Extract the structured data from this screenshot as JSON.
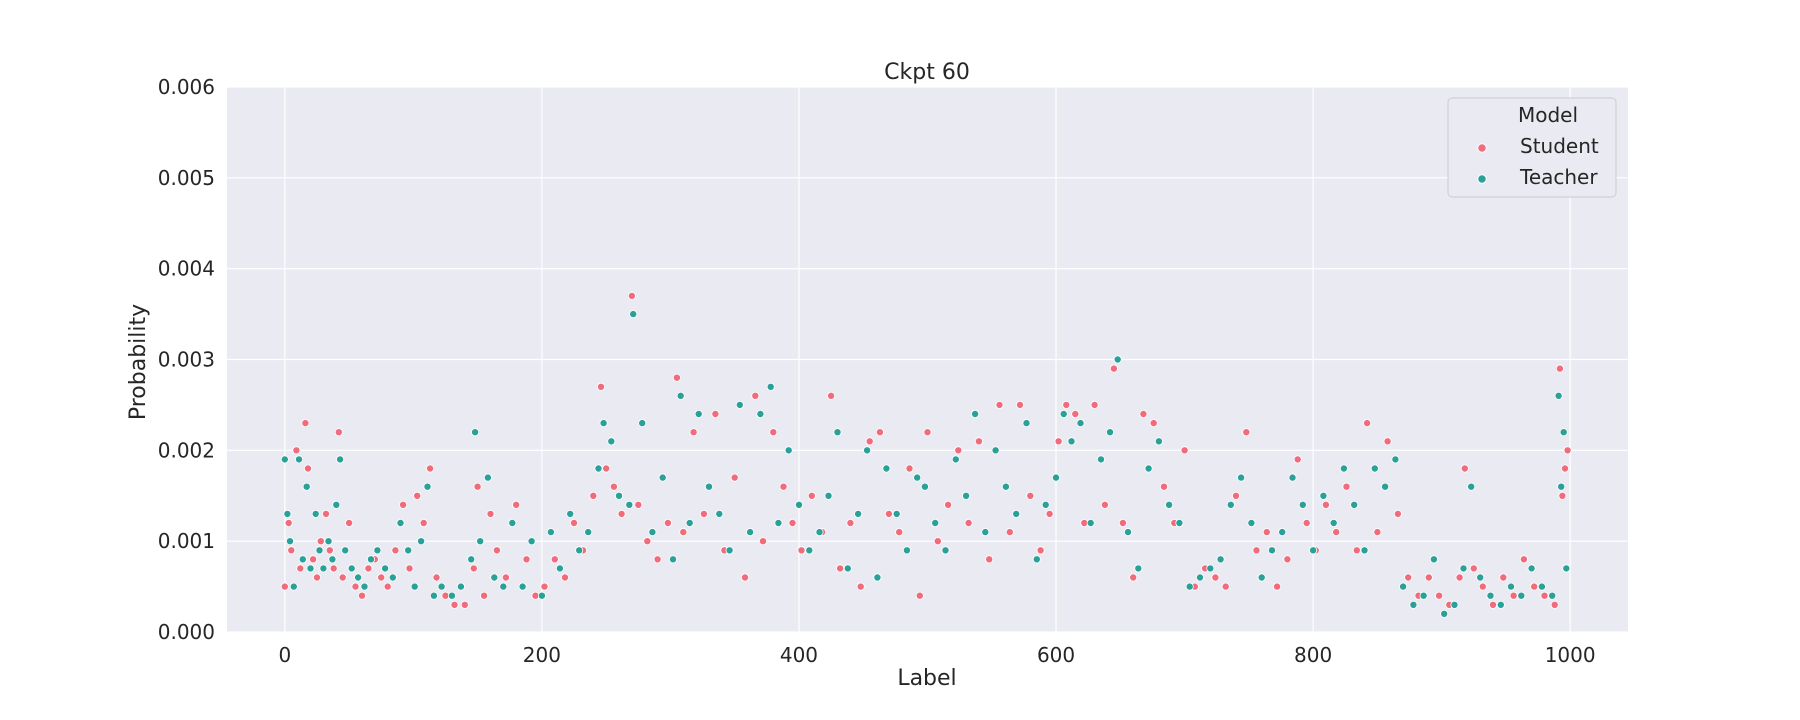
{
  "chart_data": {
    "type": "scatter",
    "title": "Ckpt 60",
    "xlabel": "Label",
    "ylabel": "Probability",
    "xlim": [
      -45,
      1045
    ],
    "ylim": [
      0,
      0.006
    ],
    "xticks": [
      0,
      200,
      400,
      600,
      800,
      1000
    ],
    "xtick_labels": [
      "0",
      "200",
      "400",
      "600",
      "800",
      "1000"
    ],
    "yticks": [
      0,
      0.001,
      0.002,
      0.003,
      0.004,
      0.005,
      0.006
    ],
    "ytick_labels": [
      "0.000",
      "0.001",
      "0.002",
      "0.003",
      "0.004",
      "0.005",
      "0.006"
    ],
    "grid": true,
    "legend": {
      "title": "Model",
      "placement": "top-right"
    },
    "series": [
      {
        "name": "Student",
        "color": "#f06c7c",
        "x": [
          0,
          3,
          5,
          9,
          12,
          16,
          18,
          22,
          25,
          28,
          32,
          35,
          38,
          42,
          45,
          50,
          55,
          60,
          65,
          70,
          75,
          80,
          86,
          92,
          97,
          103,
          108,
          113,
          118,
          125,
          132,
          140,
          147,
          150,
          155,
          160,
          165,
          172,
          180,
          188,
          195,
          202,
          210,
          218,
          225,
          232,
          240,
          246,
          250,
          256,
          262,
          270,
          275,
          282,
          290,
          298,
          305,
          310,
          318,
          326,
          335,
          342,
          350,
          358,
          366,
          372,
          380,
          388,
          395,
          402,
          410,
          418,
          425,
          432,
          440,
          448,
          455,
          463,
          470,
          478,
          486,
          494,
          500,
          508,
          516,
          524,
          532,
          540,
          548,
          556,
          564,
          572,
          580,
          588,
          595,
          602,
          608,
          615,
          622,
          630,
          638,
          645,
          652,
          660,
          668,
          676,
          684,
          692,
          700,
          708,
          716,
          724,
          732,
          740,
          748,
          756,
          764,
          772,
          780,
          788,
          795,
          802,
          810,
          818,
          826,
          834,
          842,
          850,
          858,
          866,
          874,
          882,
          890,
          898,
          906,
          914,
          918,
          925,
          932,
          940,
          948,
          956,
          964,
          972,
          980,
          988,
          992,
          994,
          996,
          998
        ],
        "y": [
          0.0005,
          0.0012,
          0.0009,
          0.002,
          0.0007,
          0.0023,
          0.0018,
          0.0008,
          0.0006,
          0.001,
          0.0013,
          0.0009,
          0.0007,
          0.0022,
          0.0006,
          0.0012,
          0.0005,
          0.0004,
          0.0007,
          0.0008,
          0.0006,
          0.0005,
          0.0009,
          0.0014,
          0.0007,
          0.0015,
          0.0012,
          0.0018,
          0.0006,
          0.0004,
          0.0003,
          0.0003,
          0.0007,
          0.0016,
          0.0004,
          0.0013,
          0.0009,
          0.0006,
          0.0014,
          0.0008,
          0.0004,
          0.0005,
          0.0008,
          0.0006,
          0.0012,
          0.0009,
          0.0015,
          0.0027,
          0.0018,
          0.0016,
          0.0013,
          0.0037,
          0.0014,
          0.001,
          0.0008,
          0.0012,
          0.0028,
          0.0011,
          0.0022,
          0.0013,
          0.0024,
          0.0009,
          0.0017,
          0.0006,
          0.0026,
          0.001,
          0.0022,
          0.0016,
          0.0012,
          0.0009,
          0.0015,
          0.0011,
          0.0026,
          0.0007,
          0.0012,
          0.0005,
          0.0021,
          0.0022,
          0.0013,
          0.0011,
          0.0018,
          0.0004,
          0.0022,
          0.001,
          0.0014,
          0.002,
          0.0012,
          0.0021,
          0.0008,
          0.0025,
          0.0011,
          0.0025,
          0.0015,
          0.0009,
          0.0013,
          0.0021,
          0.0025,
          0.0024,
          0.0012,
          0.0025,
          0.0014,
          0.0029,
          0.0012,
          0.0006,
          0.0024,
          0.0023,
          0.0016,
          0.0012,
          0.002,
          0.0005,
          0.0007,
          0.0006,
          0.0005,
          0.0015,
          0.0022,
          0.0009,
          0.0011,
          0.0005,
          0.0008,
          0.0019,
          0.0012,
          0.0009,
          0.0014,
          0.0011,
          0.0016,
          0.0009,
          0.0023,
          0.0011,
          0.0021,
          0.0013,
          0.0006,
          0.0004,
          0.0006,
          0.0004,
          0.0003,
          0.0006,
          0.0018,
          0.0007,
          0.0005,
          0.0003,
          0.0006,
          0.0004,
          0.0008,
          0.0005,
          0.0004,
          0.0003,
          0.0029,
          0.0015,
          0.0018,
          0.002
        ]
      },
      {
        "name": "Teacher",
        "color": "#2aa198",
        "x": [
          0,
          2,
          4,
          7,
          11,
          14,
          17,
          20,
          24,
          27,
          30,
          34,
          37,
          40,
          43,
          47,
          52,
          57,
          62,
          67,
          72,
          78,
          84,
          90,
          96,
          101,
          106,
          111,
          116,
          122,
          130,
          137,
          145,
          148,
          152,
          158,
          163,
          170,
          177,
          185,
          192,
          200,
          207,
          214,
          222,
          229,
          236,
          244,
          248,
          254,
          260,
          268,
          271,
          278,
          286,
          294,
          302,
          308,
          315,
          322,
          330,
          338,
          346,
          354,
          362,
          370,
          378,
          384,
          392,
          400,
          408,
          416,
          423,
          430,
          438,
          446,
          453,
          461,
          468,
          476,
          484,
          492,
          498,
          506,
          514,
          522,
          530,
          537,
          545,
          553,
          561,
          569,
          577,
          585,
          592,
          600,
          606,
          612,
          619,
          627,
          635,
          642,
          648,
          656,
          664,
          672,
          680,
          688,
          696,
          704,
          712,
          720,
          728,
          736,
          744,
          752,
          760,
          768,
          776,
          784,
          792,
          800,
          808,
          816,
          824,
          832,
          840,
          848,
          856,
          864,
          870,
          878,
          886,
          894,
          902,
          910,
          917,
          923,
          930,
          938,
          946,
          954,
          962,
          970,
          978,
          986,
          991,
          993,
          995,
          997
        ],
        "y": [
          0.0019,
          0.0013,
          0.001,
          0.0005,
          0.0019,
          0.0008,
          0.0016,
          0.0007,
          0.0013,
          0.0009,
          0.0007,
          0.001,
          0.0008,
          0.0014,
          0.0019,
          0.0009,
          0.0007,
          0.0006,
          0.0005,
          0.0008,
          0.0009,
          0.0007,
          0.0006,
          0.0012,
          0.0009,
          0.0005,
          0.001,
          0.0016,
          0.0004,
          0.0005,
          0.0004,
          0.0005,
          0.0008,
          0.0022,
          0.001,
          0.0017,
          0.0006,
          0.0005,
          0.0012,
          0.0005,
          0.001,
          0.0004,
          0.0011,
          0.0007,
          0.0013,
          0.0009,
          0.0011,
          0.0018,
          0.0023,
          0.0021,
          0.0015,
          0.0014,
          0.0035,
          0.0023,
          0.0011,
          0.0017,
          0.0008,
          0.0026,
          0.0012,
          0.0024,
          0.0016,
          0.0013,
          0.0009,
          0.0025,
          0.0011,
          0.0024,
          0.0027,
          0.0012,
          0.002,
          0.0014,
          0.0009,
          0.0011,
          0.0015,
          0.0022,
          0.0007,
          0.0013,
          0.002,
          0.0006,
          0.0018,
          0.0013,
          0.0009,
          0.0017,
          0.0016,
          0.0012,
          0.0009,
          0.0019,
          0.0015,
          0.0024,
          0.0011,
          0.002,
          0.0016,
          0.0013,
          0.0023,
          0.0008,
          0.0014,
          0.0017,
          0.0024,
          0.0021,
          0.0023,
          0.0012,
          0.0019,
          0.0022,
          0.003,
          0.0011,
          0.0007,
          0.0018,
          0.0021,
          0.0014,
          0.0012,
          0.0005,
          0.0006,
          0.0007,
          0.0008,
          0.0014,
          0.0017,
          0.0012,
          0.0006,
          0.0009,
          0.0011,
          0.0017,
          0.0014,
          0.0009,
          0.0015,
          0.0012,
          0.0018,
          0.0014,
          0.0009,
          0.0018,
          0.0016,
          0.0019,
          0.0005,
          0.0003,
          0.0004,
          0.0008,
          0.0002,
          0.0003,
          0.0007,
          0.0016,
          0.0006,
          0.0004,
          0.0003,
          0.0005,
          0.0004,
          0.0007,
          0.0005,
          0.0004,
          0.0026,
          0.0016,
          0.0022,
          0.0007
        ]
      }
    ]
  }
}
